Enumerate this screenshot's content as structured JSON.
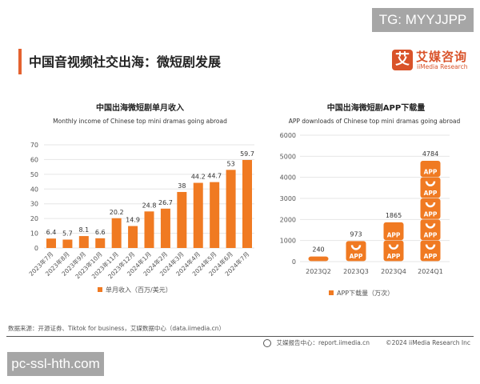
{
  "watermarks": {
    "top_right": "TG: MYYJJPP",
    "bottom_left": "pc-ssl-hth.com"
  },
  "header": {
    "title": "中国音视频社交出海：微短剧发展"
  },
  "logo": {
    "mark": "艾",
    "name_cn": "艾媒咨询",
    "name_en": "iiMedia Research"
  },
  "colors": {
    "accent": "#f07a22",
    "brand": "#d9532a",
    "grid": "#e6e6e6"
  },
  "chart_data": [
    {
      "type": "bar",
      "title": "中国出海微短剧单月收入",
      "subtitle": "Monthly income of Chinese top mini dramas going abroad",
      "categories": [
        "2023年7月",
        "2023年8月",
        "2023年9月",
        "2023年10月",
        "2023年11月",
        "2023年12月",
        "2024年1月",
        "2024年2月",
        "2024年3月",
        "2024年4月",
        "2024年5月",
        "2024年6月",
        "2024年7月"
      ],
      "series": [
        {
          "name": "单月收入（百万/美元）",
          "values": [
            6.4,
            5.7,
            8.1,
            6.6,
            20.2,
            14.9,
            24.8,
            26.7,
            38,
            44.2,
            44.7,
            53,
            59.7
          ]
        }
      ],
      "yticks": [
        0,
        10,
        20,
        30,
        40,
        50,
        60,
        70
      ],
      "ylim": [
        0,
        70
      ],
      "grid": true,
      "legend": "bottom"
    },
    {
      "type": "bar",
      "title": "中国出海微短剧APP下载量",
      "subtitle": "APP downloads of Chinese top mini dramas going abroad",
      "categories": [
        "2023Q2",
        "2023Q3",
        "2023Q4",
        "2024Q1"
      ],
      "series": [
        {
          "name": "APP下载量（万次）",
          "values": [
            240,
            973,
            1865,
            4784
          ]
        }
      ],
      "yticks": [
        0,
        1000,
        2000,
        3000,
        4000,
        5000,
        6000
      ],
      "ylim": [
        0,
        6000
      ],
      "grid": true,
      "legend": "bottom",
      "bar_icon_label": "APP"
    }
  ],
  "footer": {
    "source": "数据来源：开源证券、Tiktok for business，艾媒数据中心（data.iimedia.cn）",
    "report_center": "艾媒报告中心：report.iimedia.cn",
    "copyright": "©2024  iiMedia Research  Inc"
  }
}
